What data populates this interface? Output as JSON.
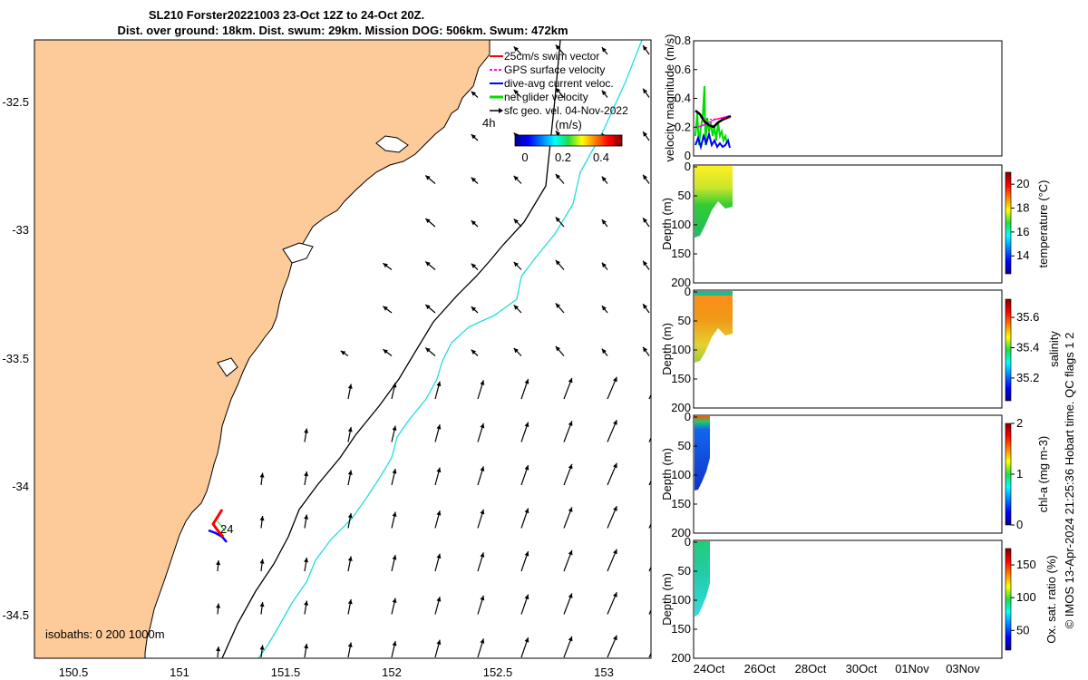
{
  "title_line1": "SL210 Forster20221003 23-Oct 12Z to 24-Oct 20Z.",
  "title_line2": "Dist. over ground: 18km. Dist. swum: 29km. Mission DOG: 506km. Swum: 472km",
  "colors": {
    "land": "#fccb99",
    "isobath_200": "#000000",
    "isobath_1000": "#22dddd",
    "swim_vector": "#ff0000",
    "gps_velocity": "#ff00ff",
    "current_velocity": "#0000ff",
    "net_velocity": "#00dd00",
    "geo_velocity": "#000000"
  },
  "chart_data": [
    {
      "type": "map",
      "panel": "map",
      "x_ticks": [
        "150.5",
        "151",
        "151.5",
        "152",
        "152.5",
        "153"
      ],
      "y_ticks": [
        "-32.5",
        "-33",
        "-33.5",
        "-34",
        "-34.5"
      ],
      "xlim": [
        150.3,
        153.2
      ],
      "ylim": [
        -34.65,
        -32.25
      ],
      "legend": [
        {
          "key": "swim",
          "label": "25cm/s swim vector"
        },
        {
          "key": "gps",
          "label": "GPS surface velocity"
        },
        {
          "key": "current",
          "label": "dive-avg current veloc."
        },
        {
          "key": "net",
          "label": "net glider velocity"
        },
        {
          "key": "geo",
          "label": "sfc geo. vel. 04-Nov-2022"
        }
      ],
      "legend_extra": "4h",
      "colorbar_label": "(m/s)",
      "colorbar_ticks": [
        "0",
        "0.2",
        "0.4"
      ],
      "annotation_24": "24",
      "isobath_label": "isobaths: 0   200  1000m"
    },
    {
      "type": "line",
      "panel": "velocity",
      "ylabel": "velocity magnitude (m/s)",
      "y_ticks": [
        "0",
        "0.2",
        "0.4",
        "0.6",
        "0.8"
      ],
      "ylim": [
        0,
        0.8
      ]
    },
    {
      "type": "heatmap",
      "panel": "temperature",
      "ylabel": "Depth (m)",
      "y_ticks": [
        "0",
        "50",
        "100",
        "150",
        "200"
      ],
      "colorbar_label": "temperature (°C)",
      "colorbar_ticks": [
        "14",
        "16",
        "18",
        "20"
      ],
      "clim": [
        12.5,
        21
      ]
    },
    {
      "type": "heatmap",
      "panel": "salinity",
      "ylabel": "Depth (m)",
      "y_ticks": [
        "0",
        "50",
        "100",
        "150",
        "200"
      ],
      "colorbar_label": "salinity",
      "colorbar_ticks": [
        "35.2",
        "35.4",
        "35.6"
      ],
      "clim": [
        35.05,
        35.72
      ]
    },
    {
      "type": "heatmap",
      "panel": "chla",
      "ylabel": "Depth (m)",
      "y_ticks": [
        "0",
        "50",
        "100",
        "150",
        "200"
      ],
      "colorbar_label": "chl-a (mg m-3)",
      "colorbar_ticks": [
        "0",
        "1",
        "2"
      ],
      "clim": [
        0,
        2
      ]
    },
    {
      "type": "heatmap",
      "panel": "oxygen",
      "ylabel": "Depth (m)",
      "y_ticks": [
        "0",
        "50",
        "100",
        "150",
        "200"
      ],
      "colorbar_label": "Ox. sat. ratio (%)",
      "colorbar_ticks": [
        "50",
        "100",
        "150"
      ],
      "clim": [
        20,
        175
      ],
      "x_ticks": [
        "24Oct",
        "26Oct",
        "28Oct",
        "30Oct",
        "01Nov",
        "03Nov"
      ]
    }
  ],
  "footer": "© IMOS 13-Apr-2024 21:25:36 Hobart time. QC flags 1  2"
}
